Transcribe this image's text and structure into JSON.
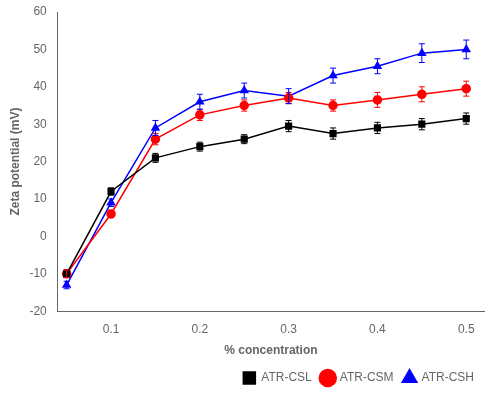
{
  "chart_data": {
    "type": "line",
    "x": [
      0.05,
      0.1,
      0.15,
      0.2,
      0.25,
      0.3,
      0.35,
      0.4,
      0.45,
      0.5
    ],
    "series": [
      {
        "name": "ATR-CSL",
        "color": "#000000",
        "marker": "square",
        "values": [
          -10,
          12,
          21,
          24,
          26,
          29.5,
          27.5,
          29,
          30,
          31.5
        ],
        "errors": [
          1.0,
          1.0,
          1.2,
          1.2,
          1.2,
          1.5,
          1.5,
          1.5,
          1.5,
          1.5
        ]
      },
      {
        "name": "ATR-CSM",
        "color": "#ff0000",
        "marker": "circle",
        "values": [
          -10,
          6,
          26,
          32.5,
          35,
          37,
          35,
          36.5,
          38,
          39.5
        ],
        "errors": [
          1.0,
          1.0,
          1.5,
          1.5,
          1.5,
          1.5,
          1.5,
          2.0,
          2.0,
          2.0
        ]
      },
      {
        "name": "ATR-CSH",
        "color": "#0000ff",
        "marker": "triangle",
        "values": [
          -13,
          9,
          29,
          36,
          39,
          37.5,
          43,
          45.5,
          49,
          50
        ],
        "errors": [
          1.0,
          1.0,
          2.0,
          2.0,
          2.0,
          2.0,
          2.0,
          2.0,
          2.5,
          2.5
        ]
      }
    ],
    "x_label": "% concentration",
    "y_label": "Zeta potential (mV)",
    "xlim": [
      0.04,
      0.52
    ],
    "xticks": [
      0.1,
      0.2,
      0.3,
      0.4,
      0.5
    ],
    "ylim": [
      -20,
      60
    ],
    "yticks": [
      -20,
      -10,
      0,
      10,
      20,
      30,
      40,
      50,
      60
    ],
    "grid": false,
    "legend": "lower right"
  }
}
